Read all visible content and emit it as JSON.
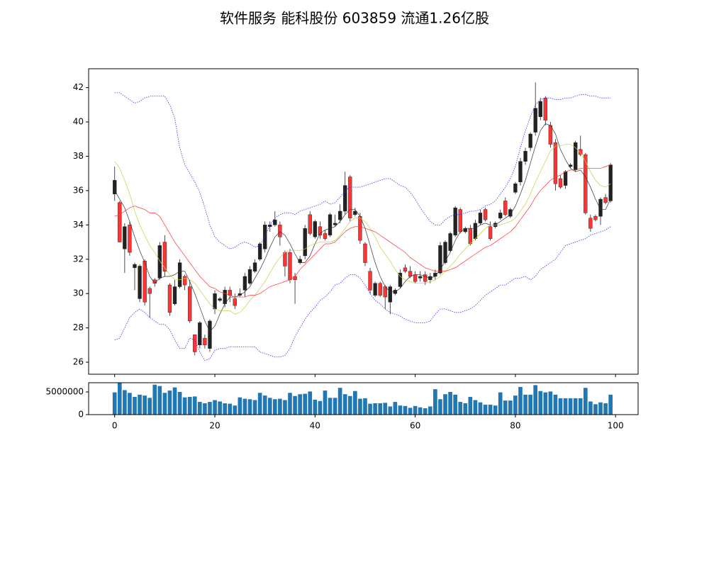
{
  "chart_data": [
    {
      "type": "candlestick",
      "title": "软件服务 能科股份 603859 流通1.26亿股",
      "x": [
        0,
        1,
        2,
        3,
        4,
        5,
        6,
        7,
        8,
        9,
        10,
        11,
        12,
        13,
        14,
        15,
        16,
        17,
        18,
        19,
        20,
        21,
        22,
        23,
        24,
        25,
        26,
        27,
        28,
        29,
        30,
        31,
        32,
        33,
        34,
        35,
        36,
        37,
        38,
        39,
        40,
        41,
        42,
        43,
        44,
        45,
        46,
        47,
        48,
        49,
        50,
        51,
        52,
        53,
        54,
        55,
        56,
        57,
        58,
        59,
        60,
        61,
        62,
        63,
        64,
        65,
        66,
        67,
        68,
        69,
        70,
        71,
        72,
        73,
        74,
        75,
        76,
        77,
        78,
        79,
        80,
        81,
        82,
        83,
        84,
        85,
        86,
        87,
        88,
        89,
        90,
        91,
        92,
        93,
        94,
        95,
        96,
        97,
        98,
        99
      ],
      "open": [
        35.8,
        35.3,
        32.6,
        34.0,
        31.5,
        29.7,
        31.9,
        30.3,
        30.8,
        30.9,
        33.0,
        30.5,
        29.4,
        30.4,
        31.0,
        30.4,
        27.6,
        27.0,
        27.4,
        26.8,
        29.1,
        29.6,
        29.4,
        30.2,
        29.7,
        29.9,
        30.2,
        30.6,
        31.3,
        32.0,
        32.6,
        33.9,
        34.0,
        34.0,
        32.4,
        32.4,
        31.0,
        31.8,
        32.2,
        34.6,
        33.3,
        33.9,
        33.5,
        33.4,
        34.0,
        34.3,
        34.8,
        36.8,
        34.6,
        34.5,
        32.9,
        31.3,
        29.9,
        30.6,
        30.4,
        29.5,
        30.0,
        30.4,
        31.5,
        31.3,
        31.1,
        30.9,
        31.1,
        30.8,
        31.0,
        31.2,
        31.8,
        32.5,
        33.4,
        34.9,
        33.6,
        33.8,
        33.2,
        34.1,
        34.9,
        33.9,
        33.9,
        34.4,
        35.4,
        34.5,
        35.9,
        36.5,
        37.7,
        38.5,
        39.4,
        40.3,
        41.4,
        39.8,
        38.8,
        36.7,
        36.3,
        37.4,
        37.2,
        38.4,
        38.1,
        34.4,
        34.5,
        34.5,
        35.6,
        35.4
      ],
      "high": [
        37.4,
        35.4,
        34.1,
        34.2,
        31.8,
        31.7,
        32.0,
        30.4,
        30.9,
        33.0,
        33.4,
        30.6,
        30.8,
        32.0,
        31.1,
        30.8,
        27.6,
        28.4,
        27.6,
        28.5,
        30.2,
        29.8,
        30.4,
        30.4,
        30.0,
        30.3,
        31.2,
        31.6,
        32.0,
        33.0,
        34.2,
        34.2,
        34.8,
        34.2,
        32.5,
        32.6,
        31.2,
        32.2,
        34.0,
        34.8,
        34.3,
        34.2,
        33.7,
        34.7,
        34.6,
        35.2,
        37.1,
        36.9,
        35.0,
        34.7,
        33.0,
        31.5,
        30.7,
        30.7,
        30.5,
        30.5,
        30.3,
        31.4,
        31.7,
        31.6,
        31.3,
        31.3,
        31.3,
        31.2,
        31.4,
        33.0,
        33.1,
        33.6,
        35.1,
        35.0,
        33.9,
        34.0,
        34.3,
        34.9,
        35.0,
        34.2,
        34.2,
        34.9,
        35.6,
        35.0,
        36.5,
        37.9,
        38.5,
        39.4,
        42.3,
        41.4,
        41.5,
        40.0,
        39.0,
        36.9,
        37.2,
        37.6,
        38.9,
        39.2,
        38.2,
        34.6,
        34.6,
        35.6,
        35.8,
        37.6
      ],
      "low": [
        35.4,
        33.0,
        31.2,
        32.2,
        30.2,
        29.5,
        29.3,
        28.6,
        30.4,
        30.8,
        31.0,
        28.7,
        29.3,
        30.3,
        30.2,
        28.3,
        26.4,
        26.8,
        26.8,
        26.6,
        28.8,
        29.5,
        29.2,
        29.5,
        29.1,
        29.8,
        29.8,
        30.5,
        31.2,
        31.9,
        32.4,
        33.6,
        33.9,
        32.8,
        31.0,
        30.6,
        29.4,
        31.7,
        32.0,
        33.4,
        33.2,
        33.2,
        33.1,
        33.3,
        33.9,
        34.1,
        34.6,
        34.2,
        34.5,
        32.9,
        31.6,
        30.0,
        29.8,
        29.8,
        29.1,
        28.8,
        29.9,
        30.3,
        31.2,
        30.9,
        30.6,
        30.7,
        30.5,
        30.6,
        30.8,
        31.1,
        31.7,
        32.4,
        33.3,
        33.5,
        33.5,
        32.8,
        33.1,
        34.0,
        34.2,
        33.1,
        33.8,
        34.3,
        34.5,
        34.4,
        35.8,
        36.3,
        37.5,
        38.3,
        39.2,
        40.1,
        39.8,
        38.5,
        36.0,
        36.1,
        36.1,
        37.3,
        37.1,
        38.0,
        34.6,
        33.6,
        34.2,
        34.0,
        35.2,
        35.3
      ],
      "close": [
        36.6,
        33.0,
        33.9,
        32.4,
        31.7,
        31.6,
        29.5,
        30.0,
        30.6,
        32.8,
        31.3,
        28.9,
        30.4,
        31.8,
        30.5,
        28.4,
        26.6,
        28.3,
        27.0,
        28.4,
        30.0,
        29.7,
        30.2,
        29.9,
        29.3,
        30.0,
        31.0,
        31.4,
        31.8,
        32.9,
        34.0,
        34.0,
        34.3,
        33.3,
        31.6,
        30.8,
        30.8,
        32.0,
        33.8,
        33.5,
        34.2,
        33.4,
        33.2,
        34.6,
        34.1,
        34.8,
        36.3,
        34.4,
        34.8,
        33.1,
        31.8,
        30.2,
        30.6,
        29.9,
        29.8,
        30.4,
        30.2,
        31.2,
        31.3,
        31.0,
        30.7,
        31.0,
        30.7,
        31.0,
        31.2,
        32.8,
        33.0,
        33.5,
        35.0,
        33.6,
        33.8,
        32.9,
        34.1,
        34.7,
        34.3,
        33.2,
        34.1,
        34.7,
        34.6,
        34.9,
        36.4,
        37.7,
        38.3,
        39.3,
        40.8,
        41.2,
        40.1,
        38.7,
        36.4,
        36.2,
        37.1,
        37.5,
        38.8,
        38.1,
        34.7,
        33.8,
        34.3,
        35.5,
        35.3,
        37.5
      ],
      "up_color": "#222222",
      "down_color": "#ff3333",
      "series": [
        {
          "color": "#333333",
          "style": "solid",
          "values": [
            36.0,
            35.5,
            35.0,
            34.2,
            33.3,
            32.5,
            31.8,
            31.0,
            30.6,
            30.9,
            31.0,
            31.0,
            31.1,
            31.3,
            31.3,
            30.7,
            30.0,
            29.2,
            28.4,
            27.8,
            28.1,
            28.8,
            29.4,
            29.8,
            29.8,
            29.9,
            30.1,
            30.4,
            30.9,
            31.4,
            32.0,
            32.7,
            33.3,
            33.6,
            33.4,
            32.9,
            32.3,
            31.8,
            31.8,
            32.2,
            32.9,
            33.5,
            33.7,
            33.8,
            33.9,
            34.2,
            34.6,
            34.9,
            34.9,
            34.5,
            33.8,
            32.8,
            31.8,
            31.0,
            30.4,
            30.1,
            30.1,
            30.3,
            30.7,
            31.0,
            31.1,
            31.1,
            31.0,
            30.9,
            31.0,
            31.4,
            31.9,
            32.4,
            33.1,
            33.6,
            33.8,
            33.8,
            33.8,
            34.0,
            34.1,
            34.0,
            34.0,
            34.2,
            34.4,
            34.6,
            35.1,
            35.8,
            36.6,
            37.6,
            38.6,
            39.5,
            39.9,
            39.8,
            39.3,
            38.4,
            37.8,
            37.3,
            37.1,
            37.2,
            36.8,
            36.2,
            35.5,
            34.9,
            34.9,
            35.5
          ]
        },
        {
          "color": "#cccc44",
          "style": "solid",
          "values": [
            37.7,
            37.3,
            36.6,
            35.8,
            34.8,
            34.0,
            33.4,
            32.8,
            32.4,
            31.9,
            31.5,
            31.1,
            30.8,
            30.8,
            30.9,
            30.8,
            30.6,
            30.2,
            29.8,
            29.4,
            29.1,
            29.0,
            29.0,
            29.0,
            28.8,
            28.9,
            29.2,
            29.6,
            29.9,
            30.3,
            30.7,
            31.2,
            31.7,
            32.1,
            32.4,
            32.5,
            32.5,
            32.5,
            32.6,
            32.8,
            32.9,
            33.0,
            33.0,
            33.0,
            33.1,
            33.4,
            33.8,
            34.2,
            34.4,
            34.4,
            34.2,
            33.8,
            33.3,
            32.7,
            32.3,
            31.9,
            31.4,
            31.0,
            30.8,
            30.7,
            30.6,
            30.6,
            30.6,
            30.7,
            30.8,
            31.0,
            31.3,
            31.6,
            31.9,
            32.3,
            32.6,
            32.9,
            33.2,
            33.5,
            33.8,
            34.0,
            34.0,
            34.0,
            34.1,
            34.2,
            34.4,
            34.8,
            35.2,
            35.8,
            36.5,
            37.1,
            37.7,
            38.3,
            38.6,
            38.6,
            38.7,
            38.7,
            38.5,
            38.2,
            37.7,
            37.1,
            36.6,
            36.3,
            36.2,
            36.4
          ]
        },
        {
          "color": "#ff3333",
          "style": "solid",
          "values": [
            34.5,
            34.6,
            34.8,
            35.0,
            35.1,
            35.0,
            34.9,
            34.7,
            34.7,
            34.5,
            34.0,
            33.5,
            33.0,
            32.6,
            32.2,
            31.8,
            31.4,
            31.0,
            30.7,
            30.4,
            30.3,
            30.1,
            30.0,
            29.9,
            29.8,
            29.8,
            29.8,
            29.9,
            29.9,
            30.0,
            30.2,
            30.4,
            30.5,
            30.6,
            30.7,
            30.8,
            31.0,
            31.4,
            31.7,
            32.0,
            32.3,
            32.6,
            32.9,
            32.9,
            33.0,
            33.3,
            33.6,
            33.8,
            33.9,
            33.9,
            33.8,
            33.7,
            33.6,
            33.4,
            33.2,
            33.0,
            32.8,
            32.6,
            32.4,
            32.1,
            31.9,
            31.7,
            31.5,
            31.4,
            31.3,
            31.3,
            31.3,
            31.4,
            31.5,
            31.7,
            31.9,
            32.1,
            32.3,
            32.5,
            32.7,
            32.8,
            33.0,
            33.2,
            33.4,
            33.6,
            33.9,
            34.3,
            34.7,
            35.1,
            35.6,
            36.0,
            36.3,
            36.6,
            36.8,
            36.9,
            37.1,
            37.2,
            37.2,
            37.3,
            37.3,
            37.3,
            37.3,
            37.3,
            37.4,
            37.5
          ]
        },
        {
          "color": "#3333ff",
          "style": "dotted",
          "values": [
            41.7,
            41.7,
            41.5,
            41.3,
            41.1,
            41.2,
            41.4,
            41.5,
            41.5,
            41.5,
            41.5,
            41.0,
            40.2,
            38.5,
            37.5,
            37.0,
            36.5,
            35.9,
            35.0,
            34.0,
            33.3,
            33.0,
            32.8,
            32.6,
            32.7,
            32.9,
            33.0,
            32.9,
            32.7,
            32.8,
            33.3,
            34.0,
            34.4,
            34.6,
            34.7,
            34.7,
            34.6,
            34.8,
            34.9,
            35.0,
            35.1,
            35.2,
            35.4,
            35.2,
            35.3,
            35.6,
            36.0,
            36.2,
            36.2,
            36.2,
            36.3,
            36.4,
            36.5,
            36.6,
            36.7,
            36.7,
            36.5,
            36.3,
            36.2,
            35.9,
            35.5,
            35.0,
            34.6,
            34.2,
            34.0,
            34.0,
            34.3,
            34.5,
            34.6,
            34.6,
            34.7,
            34.8,
            34.8,
            34.9,
            35.1,
            35.2,
            35.4,
            35.8,
            36.2,
            36.7,
            37.4,
            38.5,
            39.5,
            40.3,
            41.0,
            41.3,
            41.4,
            41.4,
            41.3,
            41.3,
            41.4,
            41.4,
            41.5,
            41.6,
            41.6,
            41.5,
            41.5,
            41.4,
            41.4,
            41.4
          ]
        },
        {
          "color": "#3333ff",
          "style": "dotted",
          "values": [
            27.3,
            27.4,
            28.0,
            28.6,
            28.9,
            29.1,
            28.9,
            28.6,
            28.4,
            28.2,
            28.2,
            27.9,
            27.3,
            26.8,
            26.8,
            27.4,
            27.3,
            26.6,
            26.1,
            26.2,
            26.7,
            26.8,
            26.8,
            26.9,
            26.9,
            26.9,
            26.9,
            26.9,
            26.9,
            26.6,
            26.5,
            26.4,
            26.3,
            26.3,
            26.4,
            26.8,
            27.5,
            28.0,
            28.5,
            28.9,
            29.2,
            29.6,
            29.8,
            30.1,
            30.5,
            30.6,
            30.9,
            31.1,
            31.1,
            30.9,
            30.5,
            30.0,
            29.6,
            29.4,
            29.1,
            28.9,
            28.8,
            28.7,
            28.5,
            28.4,
            28.3,
            28.3,
            28.3,
            28.4,
            28.8,
            29.1,
            29.1,
            29.0,
            28.9,
            28.9,
            29.0,
            29.1,
            29.3,
            29.6,
            29.9,
            30.1,
            30.3,
            30.5,
            30.5,
            30.7,
            30.9,
            30.9,
            31.0,
            30.8,
            31.0,
            31.4,
            31.6,
            31.8,
            32.0,
            32.4,
            32.8,
            32.9,
            33.0,
            33.1,
            33.2,
            33.4,
            33.5,
            33.6,
            33.7,
            33.9
          ]
        }
      ],
      "xlim": [
        -5.2,
        104.5
      ],
      "ylim": [
        25.3,
        43.1
      ],
      "yticks": [
        26,
        28,
        30,
        32,
        34,
        36,
        38,
        40,
        42
      ]
    },
    {
      "type": "bar",
      "color": "#1f77b4",
      "values": [
        4900000,
        7000000,
        5400000,
        4800000,
        3900000,
        4400000,
        4200000,
        3700000,
        6600000,
        6300000,
        4800000,
        5300000,
        6000000,
        5000000,
        3800000,
        3900000,
        4000000,
        2800000,
        2500000,
        2800000,
        3200000,
        2900000,
        2500000,
        2400000,
        2000000,
        3800000,
        3500000,
        3400000,
        3200000,
        4800000,
        4200000,
        3700000,
        3400000,
        3500000,
        3200000,
        4800000,
        4100000,
        4500000,
        4600000,
        5100000,
        3300000,
        3000000,
        5300000,
        3700000,
        3700000,
        5900000,
        4500000,
        4100000,
        5200000,
        3500000,
        3600000,
        2400000,
        2500000,
        2500000,
        2600000,
        1800000,
        2800000,
        2000000,
        1900000,
        1500000,
        1900000,
        1600000,
        1400000,
        1800000,
        5600000,
        3400000,
        4500000,
        5000000,
        4400000,
        2800000,
        2500000,
        3900000,
        3200000,
        2700000,
        2200000,
        2200000,
        2000000,
        4900000,
        3100000,
        3100000,
        4200000,
        6100000,
        4400000,
        4400000,
        6500000,
        5200000,
        4900000,
        5100000,
        4400000,
        3600000,
        3600000,
        3600000,
        3600000,
        3600000,
        5900000,
        2900000,
        2300000,
        2700000,
        2500000,
        4400000
      ],
      "xlim": [
        -5.2,
        104.5
      ],
      "xticks": [
        0,
        20,
        40,
        60,
        80,
        100
      ],
      "ylim": [
        0,
        7030000
      ],
      "yticks": [
        0,
        5000000
      ]
    }
  ]
}
